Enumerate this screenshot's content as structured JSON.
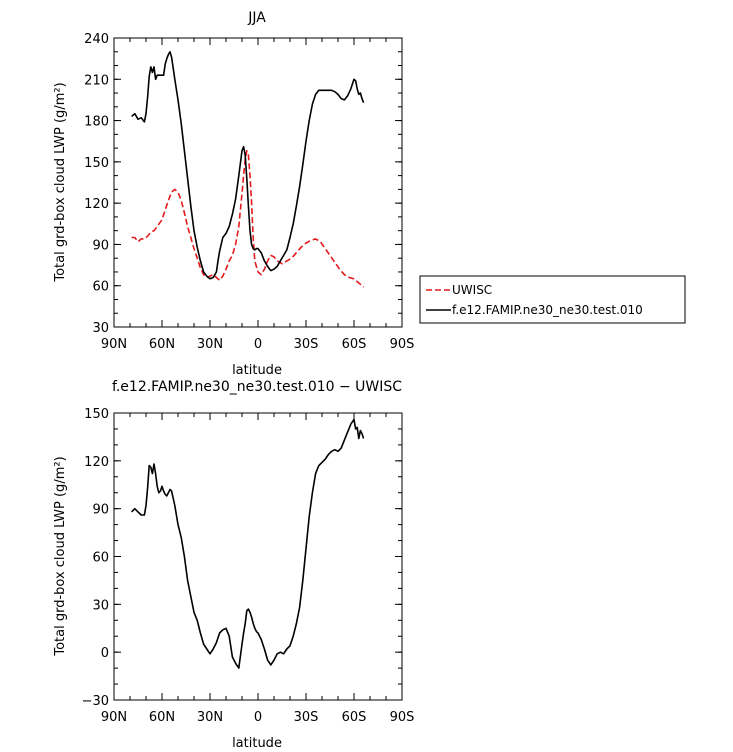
{
  "chart_data": [
    {
      "type": "line",
      "title": "JJA",
      "xlabel": "latitude",
      "ylabel": "Total grd-box cloud LWP (g/m²)",
      "xlim": [
        90,
        -90
      ],
      "ylim": [
        30,
        240
      ],
      "x_ticks": [
        90,
        60,
        30,
        0,
        -30,
        -60,
        -90
      ],
      "x_tick_labels": [
        "90N",
        "60N",
        "30N",
        "0",
        "30S",
        "60S",
        "90S"
      ],
      "y_ticks": [
        30,
        60,
        90,
        120,
        150,
        180,
        210,
        240
      ],
      "y_tick_labels": [
        "30",
        "60",
        "90",
        "120",
        "150",
        "180",
        "210",
        "240"
      ],
      "legend_position": "right",
      "series": [
        {
          "name": "UWISC",
          "color": "#e41a1c",
          "style": "dashed",
          "x": [
            79,
            77,
            75,
            73,
            71,
            69,
            67,
            65,
            63,
            60,
            58,
            56,
            54,
            52,
            50,
            48,
            46,
            44,
            42,
            40,
            38,
            36,
            34,
            32,
            30,
            28,
            26,
            24,
            22,
            20,
            18,
            16,
            14,
            12,
            11,
            10,
            9,
            8,
            7,
            6,
            5,
            4,
            3,
            2,
            0,
            -2,
            -4,
            -6,
            -8,
            -10,
            -12,
            -15,
            -18,
            -21,
            -24,
            -27,
            -30,
            -33,
            -36,
            -39,
            -42,
            -45,
            -48,
            -51,
            -54,
            -57,
            -60,
            -62,
            -64,
            -66
          ],
          "y": [
            95,
            95,
            92,
            94,
            94,
            96,
            99,
            100,
            103,
            108,
            115,
            122,
            128,
            130,
            128,
            122,
            113,
            103,
            95,
            87,
            80,
            73,
            68,
            66,
            67,
            68,
            66,
            64,
            67,
            72,
            78,
            82,
            90,
            103,
            115,
            127,
            140,
            152,
            158,
            155,
            140,
            120,
            95,
            78,
            70,
            68,
            72,
            78,
            82,
            81,
            78,
            76,
            78,
            80,
            84,
            88,
            91,
            93,
            94,
            92,
            87,
            82,
            77,
            72,
            68,
            66,
            65,
            63,
            61,
            59
          ]
        },
        {
          "name": "f.e12.FAMIP.ne30_ne30.test.010",
          "color": "#000000",
          "style": "solid",
          "x": [
            79,
            77,
            75,
            73,
            71,
            70,
            69,
            68,
            67,
            66,
            65,
            64,
            63,
            61,
            59,
            58,
            57,
            56,
            55,
            54,
            52,
            50,
            48,
            46,
            44,
            42,
            40,
            38,
            36,
            34,
            32,
            30,
            28,
            26,
            25,
            24,
            22,
            20,
            18,
            16,
            14,
            12,
            10,
            9,
            8,
            7,
            6,
            5,
            4,
            3,
            2,
            1,
            0,
            -2,
            -4,
            -6,
            -8,
            -10,
            -12,
            -14,
            -16,
            -18,
            -20,
            -22,
            -24,
            -26,
            -28,
            -30,
            -32,
            -34,
            -36,
            -38,
            -40,
            -42,
            -44,
            -46,
            -48,
            -50,
            -52,
            -54,
            -56,
            -58,
            -60,
            -61,
            -62,
            -63,
            -64,
            -65,
            -66
          ],
          "y": [
            183,
            185,
            181,
            182,
            179,
            185,
            197,
            212,
            219,
            215,
            219,
            210,
            213,
            213,
            213,
            221,
            225,
            228,
            230,
            226,
            210,
            195,
            178,
            158,
            138,
            118,
            100,
            88,
            78,
            70,
            67,
            65,
            66,
            70,
            78,
            85,
            95,
            98,
            103,
            112,
            123,
            140,
            158,
            161,
            155,
            138,
            118,
            100,
            90,
            87,
            86,
            87,
            87,
            84,
            78,
            74,
            71,
            72,
            74,
            78,
            82,
            86,
            95,
            105,
            118,
            132,
            148,
            165,
            180,
            192,
            199,
            202,
            202,
            202,
            202,
            202,
            201,
            199,
            196,
            195,
            198,
            203,
            210,
            209,
            203,
            199,
            200,
            196,
            193
          ]
        }
      ]
    },
    {
      "type": "line",
      "title": "f.e12.FAMIP.ne30_ne30.test.010 − UWISC",
      "xlabel": "latitude",
      "ylabel": "Total grd-box cloud LWP (g/m²)",
      "xlim": [
        90,
        -90
      ],
      "ylim": [
        -30,
        150
      ],
      "x_ticks": [
        90,
        60,
        30,
        0,
        -30,
        -60,
        -90
      ],
      "x_tick_labels": [
        "90N",
        "60N",
        "30N",
        "0",
        "30S",
        "60S",
        "90S"
      ],
      "y_ticks": [
        -30,
        0,
        30,
        60,
        90,
        120,
        150
      ],
      "y_tick_labels": [
        "−30",
        "0",
        "30",
        "60",
        "90",
        "120",
        "150"
      ],
      "series": [
        {
          "color": "#000000",
          "style": "solid",
          "x": [
            79,
            77,
            75,
            73,
            71,
            70,
            69,
            68,
            67,
            66,
            65,
            64,
            63,
            62,
            61,
            60,
            59,
            58,
            57,
            56,
            55,
            54,
            52,
            50,
            48,
            46,
            44,
            42,
            40,
            38,
            36,
            34,
            32,
            30,
            28,
            26,
            24,
            22,
            20,
            18,
            16,
            14,
            12,
            10,
            9,
            8,
            7,
            6,
            5,
            4,
            3,
            2,
            1,
            0,
            -2,
            -4,
            -6,
            -8,
            -10,
            -12,
            -14,
            -16,
            -18,
            -20,
            -22,
            -24,
            -26,
            -28,
            -30,
            -32,
            -34,
            -36,
            -38,
            -40,
            -42,
            -44,
            -46,
            -48,
            -50,
            -52,
            -54,
            -56,
            -58,
            -60,
            -61,
            -62,
            -63,
            -64,
            -65,
            -66
          ],
          "y": [
            88,
            90,
            88,
            86,
            86,
            92,
            103,
            117,
            116,
            112,
            118,
            112,
            104,
            100,
            101,
            104,
            101,
            99,
            98,
            100,
            102,
            101,
            92,
            80,
            72,
            60,
            45,
            35,
            25,
            20,
            12,
            5,
            2,
            -1,
            2,
            6,
            12,
            14,
            15,
            10,
            -3,
            -7,
            -10,
            5,
            12,
            18,
            26,
            27,
            25,
            22,
            18,
            15,
            13,
            12,
            8,
            2,
            -5,
            -8,
            -5,
            -1,
            0,
            -1,
            2,
            4,
            10,
            18,
            28,
            45,
            65,
            85,
            100,
            112,
            117,
            119,
            121,
            124,
            126,
            127,
            126,
            128,
            133,
            138,
            143,
            146,
            140,
            141,
            134,
            139,
            137,
            134
          ]
        }
      ]
    }
  ],
  "legend": {
    "entries": [
      "UWISC",
      "f.e12.FAMIP.ne30_ne30.test.010"
    ]
  }
}
